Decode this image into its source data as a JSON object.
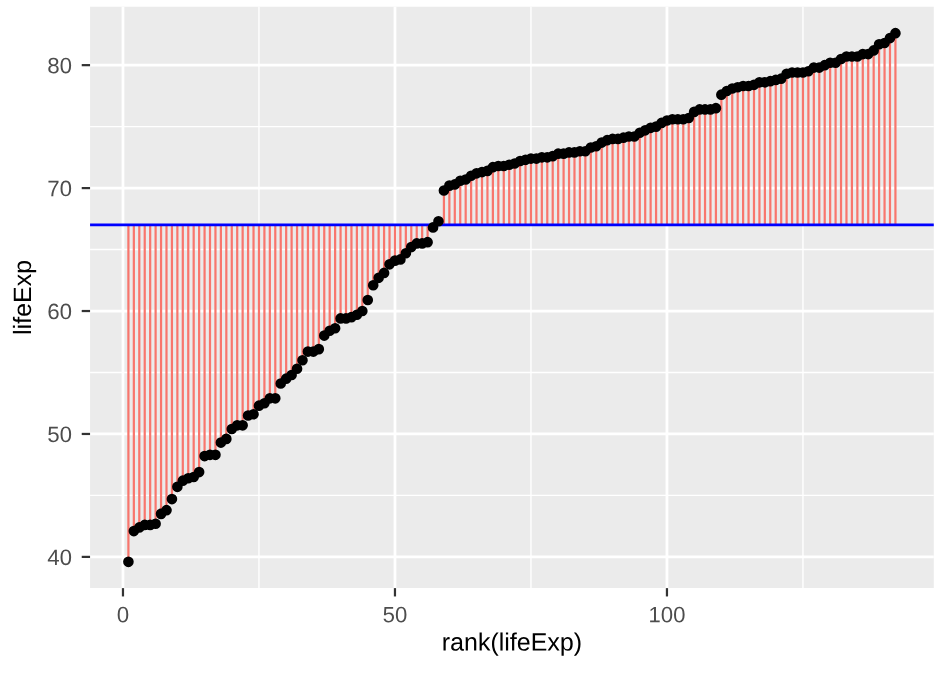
{
  "chart_data": {
    "type": "scatter",
    "xlabel": "rank(lifeExp)",
    "ylabel": "lifeExp",
    "x": [
      1,
      2,
      3,
      4,
      5,
      6,
      7,
      8,
      9,
      10,
      11,
      12,
      13,
      14,
      15,
      16,
      17,
      18,
      19,
      20,
      21,
      22,
      23,
      24,
      25,
      26,
      27,
      28,
      29,
      30,
      31,
      32,
      33,
      34,
      35,
      36,
      37,
      38,
      39,
      40,
      41,
      42,
      43,
      44,
      45,
      46,
      47,
      48,
      49,
      50,
      51,
      52,
      53,
      54,
      55,
      56,
      57,
      58,
      59,
      60,
      61,
      62,
      63,
      64,
      65,
      66,
      67,
      68,
      69,
      70,
      71,
      72,
      73,
      74,
      75,
      76,
      77,
      78,
      79,
      80,
      81,
      82,
      83,
      84,
      85,
      86,
      87,
      88,
      89,
      90,
      91,
      92,
      93,
      94,
      95,
      96,
      97,
      98,
      99,
      100,
      101,
      102,
      103,
      104,
      105,
      106,
      107,
      108,
      109,
      110,
      111,
      112,
      113,
      114,
      115,
      116,
      117,
      118,
      119,
      120,
      121,
      122,
      123,
      124,
      125,
      126,
      127,
      128,
      129,
      130,
      131,
      132,
      133,
      134,
      135,
      136,
      137,
      138,
      139,
      140,
      141,
      142
    ],
    "series": [
      {
        "color": "#000000",
        "values": [
          39.6,
          42.1,
          42.4,
          42.6,
          42.6,
          42.7,
          43.5,
          43.8,
          44.7,
          45.7,
          46.2,
          46.4,
          46.5,
          46.9,
          48.2,
          48.3,
          48.3,
          49.3,
          49.6,
          50.4,
          50.7,
          50.7,
          51.5,
          51.6,
          52.3,
          52.5,
          52.9,
          52.9,
          54.1,
          54.5,
          54.8,
          55.3,
          56.0,
          56.7,
          56.7,
          56.9,
          58.0,
          58.4,
          58.6,
          59.4,
          59.4,
          59.5,
          59.7,
          60.0,
          60.9,
          62.1,
          62.7,
          63.1,
          63.8,
          64.1,
          64.2,
          64.7,
          65.2,
          65.5,
          65.5,
          65.6,
          66.8,
          67.3,
          69.8,
          70.2,
          70.3,
          70.6,
          70.7,
          71.0,
          71.2,
          71.3,
          71.4,
          71.7,
          71.8,
          71.8,
          71.9,
          72.0,
          72.2,
          72.3,
          72.4,
          72.4,
          72.5,
          72.5,
          72.6,
          72.8,
          72.8,
          72.9,
          72.9,
          73.0,
          73.0,
          73.3,
          73.4,
          73.7,
          73.9,
          74.0,
          74.0,
          74.1,
          74.2,
          74.2,
          74.5,
          74.7,
          74.9,
          75.0,
          75.3,
          75.5,
          75.6,
          75.6,
          75.6,
          75.7,
          76.2,
          76.4,
          76.4,
          76.4,
          76.5,
          77.6,
          77.9,
          78.1,
          78.2,
          78.3,
          78.3,
          78.4,
          78.6,
          78.6,
          78.7,
          78.8,
          78.9,
          79.3,
          79.4,
          79.4,
          79.4,
          79.5,
          79.8,
          79.8,
          80.0,
          80.2,
          80.2,
          80.5,
          80.7,
          80.7,
          80.7,
          80.9,
          80.9,
          81.2,
          81.7,
          81.8,
          82.2,
          82.6
        ],
        "errors": [
          [
            39.6,
            67.0
          ],
          [
            42.1,
            67.0
          ],
          [
            42.4,
            67.0
          ],
          [
            42.6,
            67.0
          ],
          [
            42.6,
            67.0
          ],
          [
            42.7,
            67.0
          ],
          [
            43.5,
            67.0
          ],
          [
            43.8,
            67.0
          ],
          [
            44.7,
            67.0
          ],
          [
            45.7,
            67.0
          ],
          [
            46.2,
            67.0
          ],
          [
            46.4,
            67.0
          ],
          [
            46.5,
            67.0
          ],
          [
            46.9,
            67.0
          ],
          [
            48.2,
            67.0
          ],
          [
            48.3,
            67.0
          ],
          [
            48.3,
            67.0
          ],
          [
            49.3,
            67.0
          ],
          [
            49.6,
            67.0
          ],
          [
            50.4,
            67.0
          ],
          [
            50.7,
            67.0
          ],
          [
            50.7,
            67.0
          ],
          [
            51.5,
            67.0
          ],
          [
            51.6,
            67.0
          ],
          [
            52.3,
            67.0
          ],
          [
            52.5,
            67.0
          ],
          [
            52.9,
            67.0
          ],
          [
            52.9,
            67.0
          ],
          [
            54.1,
            67.0
          ],
          [
            54.5,
            67.0
          ],
          [
            54.8,
            67.0
          ],
          [
            55.3,
            67.0
          ],
          [
            56.0,
            67.0
          ],
          [
            56.7,
            67.0
          ],
          [
            56.7,
            67.0
          ],
          [
            56.9,
            67.0
          ],
          [
            58.0,
            67.0
          ],
          [
            58.4,
            67.0
          ],
          [
            58.6,
            67.0
          ],
          [
            59.4,
            67.0
          ],
          [
            59.4,
            67.0
          ],
          [
            59.5,
            67.0
          ],
          [
            59.7,
            67.0
          ],
          [
            60.0,
            67.0
          ],
          [
            60.9,
            67.0
          ],
          [
            62.1,
            67.0
          ],
          [
            62.7,
            67.0
          ],
          [
            63.1,
            67.0
          ],
          [
            63.8,
            67.0
          ],
          [
            64.1,
            67.0
          ],
          [
            64.2,
            67.0
          ],
          [
            64.7,
            67.0
          ],
          [
            65.2,
            67.0
          ],
          [
            65.5,
            67.0
          ],
          [
            65.5,
            67.0
          ],
          [
            65.6,
            67.0
          ],
          [
            66.8,
            67.0
          ],
          [
            67.0,
            67.3
          ],
          [
            67.0,
            69.8
          ],
          [
            67.0,
            70.2
          ],
          [
            67.0,
            70.3
          ],
          [
            67.0,
            70.6
          ],
          [
            67.0,
            70.7
          ],
          [
            67.0,
            71.0
          ],
          [
            67.0,
            71.2
          ],
          [
            67.0,
            71.3
          ],
          [
            67.0,
            71.4
          ],
          [
            67.0,
            71.7
          ],
          [
            67.0,
            71.8
          ],
          [
            67.0,
            71.8
          ],
          [
            67.0,
            71.9
          ],
          [
            67.0,
            72.0
          ],
          [
            67.0,
            72.2
          ],
          [
            67.0,
            72.3
          ],
          [
            67.0,
            72.4
          ],
          [
            67.0,
            72.4
          ],
          [
            67.0,
            72.5
          ],
          [
            67.0,
            72.5
          ],
          [
            67.0,
            72.6
          ],
          [
            67.0,
            72.8
          ],
          [
            67.0,
            72.8
          ],
          [
            67.0,
            72.9
          ],
          [
            67.0,
            72.9
          ],
          [
            67.0,
            73.0
          ],
          [
            67.0,
            73.0
          ],
          [
            67.0,
            73.3
          ],
          [
            67.0,
            73.4
          ],
          [
            67.0,
            73.7
          ],
          [
            67.0,
            73.9
          ],
          [
            67.0,
            74.0
          ],
          [
            67.0,
            74.0
          ],
          [
            67.0,
            74.1
          ],
          [
            67.0,
            74.2
          ],
          [
            67.0,
            74.2
          ],
          [
            67.0,
            74.5
          ],
          [
            67.0,
            74.7
          ],
          [
            67.0,
            74.9
          ],
          [
            67.0,
            75.0
          ],
          [
            67.0,
            75.3
          ],
          [
            67.0,
            75.5
          ],
          [
            67.0,
            75.6
          ],
          [
            67.0,
            75.6
          ],
          [
            67.0,
            75.6
          ],
          [
            67.0,
            75.7
          ],
          [
            67.0,
            76.2
          ],
          [
            67.0,
            76.4
          ],
          [
            67.0,
            76.4
          ],
          [
            67.0,
            76.4
          ],
          [
            67.0,
            76.5
          ],
          [
            67.0,
            77.6
          ],
          [
            67.0,
            77.9
          ],
          [
            67.0,
            78.1
          ],
          [
            67.0,
            78.2
          ],
          [
            67.0,
            78.3
          ],
          [
            67.0,
            78.3
          ],
          [
            67.0,
            78.4
          ],
          [
            67.0,
            78.6
          ],
          [
            67.0,
            78.6
          ],
          [
            67.0,
            78.7
          ],
          [
            67.0,
            78.8
          ],
          [
            67.0,
            78.9
          ],
          [
            67.0,
            79.3
          ],
          [
            67.0,
            79.4
          ],
          [
            67.0,
            79.4
          ],
          [
            67.0,
            79.4
          ],
          [
            67.0,
            79.5
          ],
          [
            67.0,
            79.8
          ],
          [
            67.0,
            79.8
          ],
          [
            67.0,
            80.0
          ],
          [
            67.0,
            80.2
          ],
          [
            67.0,
            80.2
          ],
          [
            67.0,
            80.5
          ],
          [
            67.0,
            80.7
          ],
          [
            67.0,
            80.7
          ],
          [
            67.0,
            80.7
          ],
          [
            67.0,
            80.9
          ],
          [
            67.0,
            80.9
          ],
          [
            67.0,
            81.2
          ],
          [
            67.0,
            81.7
          ],
          [
            67.0,
            81.8
          ],
          [
            67.0,
            82.2
          ],
          [
            67.0,
            82.6
          ]
        ]
      }
    ],
    "ref_lines": [
      {
        "axis": "y",
        "value": 67.0,
        "color": "#0000ff"
      }
    ],
    "xlim": [
      -6.05,
      149.05
    ],
    "ylim": [
      37.46,
      84.75
    ],
    "xticks": [
      0,
      50,
      100
    ],
    "yticks": [
      40,
      50,
      60,
      70,
      80
    ],
    "grid": true,
    "marker": "circle"
  }
}
